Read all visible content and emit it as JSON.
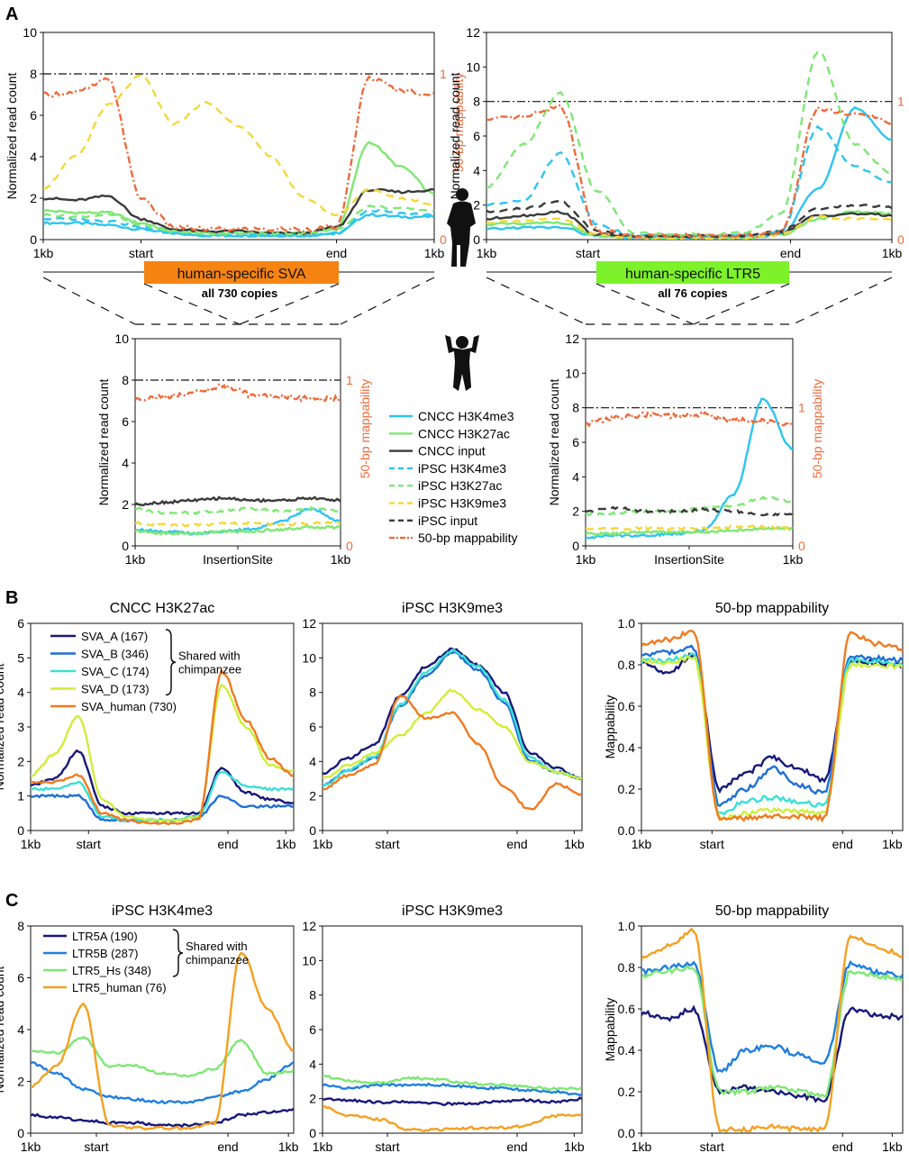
{
  "panel_labels": {
    "A": "A",
    "B": "B",
    "C": "C"
  },
  "colors": {
    "cncc_h3k4me3": "#2ec4f0",
    "cncc_h3k27ac": "#7ee873",
    "cncc_input": "#3a3a3a",
    "ipsc_h3k4me3": "#2ec4f0",
    "ipsc_h3k27ac": "#7ee873",
    "ipsc_h3k9me3": "#f4d83a",
    "ipsc_input": "#3a3a3a",
    "mappability": "#ee6a3b",
    "sva_a": "#17187a",
    "sva_b": "#1f6fd6",
    "sva_c": "#3be0d4",
    "sva_d": "#cfee3a",
    "sva_human": "#f07a1f",
    "ltr5a": "#17187a",
    "ltr5b": "#1f7fe0",
    "ltr5_hs": "#7ee873",
    "ltr5_human": "#f5a020",
    "sva_box": "#f58412",
    "ltr_box": "#7df22a"
  },
  "labels": {
    "sva_box": "human-specific SVA",
    "sva_copies": "all 730 copies",
    "ltr_box": "human-specific LTR5",
    "ltr_copies": "all 76 copies",
    "shared": "Shared with",
    "chimp": "chimpanzee",
    "legendA": [
      "CNCC H3K4me3",
      "CNCC H3K27ac",
      "CNCC input",
      "iPSC H3K4me3",
      "iPSC H3K27ac",
      "iPSC H3K9me3",
      "iPSC input",
      "50-bp mappability"
    ]
  },
  "chart_data": [
    {
      "id": "A-sva-human",
      "type": "line",
      "ylabel": "Normalized read count",
      "y2label": "50-bp mappability",
      "ylim": [
        0,
        10
      ],
      "yticks": [
        0,
        2,
        4,
        6,
        8,
        10
      ],
      "y2ticks": [
        "0",
        "1"
      ],
      "xticks": [
        "1kb",
        "start",
        "end",
        "1kb"
      ],
      "series": [
        {
          "name": "CNCC H3K4me3",
          "values": [
            0.8,
            0.8,
            0.7,
            0.5,
            0.3,
            0.2,
            0.2,
            0.2,
            0.2,
            0.3,
            1.2,
            1.1,
            1.1
          ]
        },
        {
          "name": "CNCC H3K27ac",
          "values": [
            1.4,
            1.3,
            1.3,
            0.8,
            0.4,
            0.3,
            0.3,
            0.3,
            0.3,
            0.5,
            4.7,
            3.5,
            2.2
          ]
        },
        {
          "name": "CNCC input",
          "values": [
            2.0,
            1.9,
            2.1,
            1.0,
            0.5,
            0.4,
            0.4,
            0.3,
            0.3,
            0.6,
            2.4,
            2.3,
            2.4
          ]
        },
        {
          "name": "iPSC H3K4me3",
          "values": [
            1.0,
            1.0,
            0.9,
            0.6,
            0.3,
            0.2,
            0.2,
            0.2,
            0.2,
            0.3,
            1.4,
            1.3,
            1.2
          ]
        },
        {
          "name": "iPSC H3K27ac",
          "values": [
            1.2,
            1.1,
            1.2,
            0.7,
            0.4,
            0.3,
            0.3,
            0.3,
            0.3,
            0.5,
            1.6,
            1.5,
            1.4
          ]
        },
        {
          "name": "iPSC H3K9me3",
          "values": [
            2.5,
            4.0,
            6.5,
            7.9,
            5.6,
            6.6,
            5.5,
            4.0,
            2.0,
            1.2,
            2.4,
            2.0,
            1.7
          ]
        },
        {
          "name": "50-bp mappability",
          "values": [
            7.0,
            7.1,
            7.7,
            2.0,
            0.6,
            0.5,
            0.5,
            0.5,
            0.5,
            0.6,
            7.8,
            7.2,
            7.0
          ]
        }
      ]
    },
    {
      "id": "A-ltr5-human",
      "type": "line",
      "ylabel": "Normalized read count",
      "y2label": "50-bp mappability",
      "ylim": [
        0,
        12
      ],
      "yticks": [
        0,
        2,
        4,
        6,
        8,
        10,
        12
      ],
      "y2ticks": [
        "0",
        "1"
      ],
      "xticks": [
        "1kb",
        "start",
        "end",
        "1kb"
      ],
      "series": [
        {
          "name": "CNCC H3K4me3",
          "values": [
            0.6,
            0.7,
            0.7,
            0.2,
            0.1,
            0.1,
            0.1,
            0.1,
            0.3,
            3.0,
            7.6,
            5.8
          ]
        },
        {
          "name": "CNCC H3K27ac",
          "values": [
            0.9,
            0.9,
            1.0,
            0.2,
            0.1,
            0.1,
            0.1,
            0.1,
            0.3,
            1.2,
            1.6,
            1.5
          ]
        },
        {
          "name": "CNCC input",
          "values": [
            1.2,
            1.4,
            1.6,
            0.3,
            0.2,
            0.2,
            0.2,
            0.2,
            0.4,
            1.4,
            1.5,
            1.4
          ]
        },
        {
          "name": "iPSC H3K4me3",
          "values": [
            2.0,
            2.3,
            5.0,
            0.9,
            0.2,
            0.2,
            0.2,
            0.2,
            0.5,
            6.5,
            4.2,
            3.3
          ]
        },
        {
          "name": "iPSC H3K27ac",
          "values": [
            3.0,
            5.5,
            8.5,
            2.8,
            0.4,
            0.3,
            0.3,
            0.4,
            1.5,
            10.9,
            5.5,
            3.8
          ]
        },
        {
          "name": "iPSC H3K9me3",
          "values": [
            1.0,
            1.1,
            1.2,
            0.3,
            0.1,
            0.1,
            0.1,
            0.1,
            0.3,
            1.3,
            1.2,
            1.2
          ]
        },
        {
          "name": "iPSC input",
          "values": [
            1.6,
            1.8,
            2.2,
            0.5,
            0.2,
            0.2,
            0.2,
            0.2,
            0.5,
            1.8,
            2.0,
            1.9
          ]
        },
        {
          "name": "50-bp mappability",
          "values": [
            6.9,
            7.1,
            7.7,
            0.5,
            0.2,
            0.2,
            0.2,
            0.2,
            0.5,
            7.6,
            7.3,
            6.8
          ]
        }
      ]
    },
    {
      "id": "A-sva-chimp",
      "type": "line",
      "ylabel": "Normalized read count",
      "y2label": "50-bp mappability",
      "ylim": [
        0,
        10
      ],
      "yticks": [
        0,
        2,
        4,
        6,
        8,
        10
      ],
      "y2ticks": [
        "0",
        "1"
      ],
      "xticks": [
        "1kb",
        "InsertionSite",
        "1kb"
      ],
      "series": [
        {
          "name": "CNCC H3K4me3",
          "values": [
            0.8,
            0.7,
            0.6,
            0.7,
            0.8,
            1.2,
            1.8,
            1.2
          ]
        },
        {
          "name": "CNCC H3K27ac",
          "values": [
            0.7,
            0.6,
            0.6,
            0.7,
            0.7,
            0.8,
            0.9,
            0.9
          ]
        },
        {
          "name": "CNCC input",
          "values": [
            2.0,
            2.1,
            2.2,
            2.3,
            2.2,
            2.2,
            2.3,
            2.2
          ]
        },
        {
          "name": "iPSC H3K27ac",
          "values": [
            1.8,
            1.6,
            1.6,
            1.7,
            1.8,
            1.7,
            1.8,
            1.7
          ]
        },
        {
          "name": "iPSC H3K9me3",
          "values": [
            1.1,
            1.0,
            1.0,
            1.1,
            1.1,
            1.0,
            1.1,
            1.1
          ]
        },
        {
          "name": "50-bp mappability",
          "values": [
            7.1,
            7.2,
            7.4,
            7.7,
            7.3,
            7.2,
            7.1,
            7.1
          ]
        }
      ]
    },
    {
      "id": "A-ltr5-chimp",
      "type": "line",
      "ylabel": "Normalized read count",
      "y2label": "50-bp mappability",
      "ylim": [
        0,
        12
      ],
      "yticks": [
        0,
        2,
        4,
        6,
        8,
        10,
        12
      ],
      "y2ticks": [
        "0",
        "1"
      ],
      "xticks": [
        "1kb",
        "InsertionSite",
        "1kb"
      ],
      "series": [
        {
          "name": "CNCC H3K4me3",
          "values": [
            0.5,
            0.6,
            0.6,
            0.7,
            0.9,
            3.0,
            8.5,
            5.6
          ]
        },
        {
          "name": "CNCC H3K27ac",
          "values": [
            0.7,
            0.7,
            0.8,
            0.8,
            0.8,
            0.9,
            1.0,
            1.0
          ]
        },
        {
          "name": "iPSC H3K27ac",
          "values": [
            1.8,
            1.9,
            2.0,
            2.0,
            2.2,
            2.3,
            2.8,
            2.6
          ]
        },
        {
          "name": "iPSC H3K9me3",
          "values": [
            1.0,
            1.0,
            1.0,
            1.0,
            1.0,
            1.1,
            1.1,
            1.0
          ]
        },
        {
          "name": "iPSC input",
          "values": [
            2.0,
            2.2,
            2.0,
            2.0,
            2.1,
            2.0,
            1.8,
            1.8
          ]
        },
        {
          "name": "50-bp mappability",
          "values": [
            7.1,
            7.4,
            7.6,
            7.5,
            7.6,
            7.3,
            7.2,
            7.0
          ]
        }
      ]
    },
    {
      "id": "B-cncc-h3k27ac",
      "type": "line",
      "title": "CNCC H3K27ac",
      "ylabel": "Normalized read count",
      "ylim": [
        0,
        6
      ],
      "yticks": [
        0,
        1,
        2,
        3,
        4,
        5,
        6
      ],
      "xticks": [
        "1kb",
        "start",
        "end",
        "1kb"
      ],
      "series": [
        {
          "name": "SVA_A (167)",
          "values": [
            1.3,
            1.5,
            2.3,
            0.7,
            0.5,
            0.5,
            0.5,
            0.5,
            1.8,
            1.1,
            0.9,
            0.8
          ]
        },
        {
          "name": "SVA_B (346)",
          "values": [
            1.0,
            1.0,
            1.0,
            0.3,
            0.3,
            0.3,
            0.3,
            0.4,
            1.0,
            0.7,
            0.7,
            0.7
          ]
        },
        {
          "name": "SVA_C (174)",
          "values": [
            1.2,
            1.2,
            1.4,
            0.4,
            0.3,
            0.3,
            0.3,
            0.4,
            1.7,
            1.3,
            1.2,
            1.2
          ]
        },
        {
          "name": "SVA_D (173)",
          "values": [
            1.6,
            2.2,
            3.3,
            0.9,
            0.4,
            0.3,
            0.3,
            0.4,
            4.2,
            3.0,
            1.9,
            1.7
          ]
        },
        {
          "name": "SVA_human (730)",
          "values": [
            1.4,
            1.4,
            1.6,
            0.5,
            0.3,
            0.2,
            0.2,
            0.3,
            4.6,
            3.2,
            2.1,
            1.6
          ]
        }
      ]
    },
    {
      "id": "B-ipsc-h3k9me3",
      "type": "line",
      "title": "iPSC H3K9me3",
      "ylim": [
        0,
        12
      ],
      "yticks": [
        0,
        2,
        4,
        6,
        8,
        10,
        12
      ],
      "xticks": [
        "1kb",
        "start",
        "end",
        "1kb"
      ],
      "series": [
        {
          "name": "SVA_A (167)",
          "values": [
            3.3,
            4.2,
            5.0,
            7.8,
            9.5,
            10.5,
            9.6,
            8.0,
            4.5,
            3.6,
            3.0
          ]
        },
        {
          "name": "SVA_B (346)",
          "values": [
            2.6,
            3.5,
            4.2,
            7.2,
            9.0,
            10.3,
            9.3,
            7.4,
            4.0,
            3.4,
            3.0
          ]
        },
        {
          "name": "SVA_C (174)",
          "values": [
            2.6,
            3.5,
            4.3,
            7.3,
            9.2,
            10.4,
            9.5,
            7.6,
            4.2,
            3.4,
            3.0
          ]
        },
        {
          "name": "SVA_D (173)",
          "values": [
            3.0,
            3.8,
            4.5,
            5.5,
            6.8,
            8.1,
            7.0,
            6.0,
            4.0,
            3.4,
            3.0
          ]
        },
        {
          "name": "SVA_human (730)",
          "values": [
            2.4,
            3.2,
            3.8,
            7.8,
            6.5,
            6.8,
            5.0,
            2.5,
            1.2,
            2.7,
            2.1
          ]
        }
      ]
    },
    {
      "id": "B-mappability",
      "type": "line",
      "title": "50-bp mappability",
      "ylabel": "Mappability",
      "ylim": [
        0,
        1
      ],
      "yticks": [
        "0.0",
        "0.2",
        "0.4",
        "0.6",
        "0.8",
        "1.0"
      ],
      "xticks": [
        "1kb",
        "start",
        "end",
        "1kb"
      ],
      "series": [
        {
          "name": "SVA_A (167)",
          "values": [
            0.82,
            0.76,
            0.85,
            0.2,
            0.28,
            0.35,
            0.3,
            0.24,
            0.82,
            0.81,
            0.8
          ]
        },
        {
          "name": "SVA_B (346)",
          "values": [
            0.85,
            0.86,
            0.88,
            0.12,
            0.2,
            0.3,
            0.22,
            0.18,
            0.84,
            0.83,
            0.82
          ]
        },
        {
          "name": "SVA_C (174)",
          "values": [
            0.82,
            0.82,
            0.85,
            0.08,
            0.14,
            0.16,
            0.14,
            0.12,
            0.82,
            0.82,
            0.8
          ]
        },
        {
          "name": "SVA_D (173)",
          "values": [
            0.82,
            0.81,
            0.84,
            0.06,
            0.08,
            0.1,
            0.09,
            0.08,
            0.8,
            0.8,
            0.79
          ]
        },
        {
          "name": "SVA_human (730)",
          "values": [
            0.9,
            0.92,
            0.96,
            0.05,
            0.06,
            0.07,
            0.07,
            0.06,
            0.95,
            0.9,
            0.88
          ]
        }
      ]
    },
    {
      "id": "C-ipsc-h3k4me3",
      "type": "line",
      "title": "iPSC H3K4me3",
      "ylabel": "Normalized read count",
      "ylim": [
        0,
        8
      ],
      "yticks": [
        0,
        2,
        4,
        6,
        8
      ],
      "xticks": [
        "1kb",
        "start",
        "end",
        "1kb"
      ],
      "series": [
        {
          "name": "LTR5A (190)",
          "values": [
            0.7,
            0.6,
            0.5,
            0.4,
            0.4,
            0.3,
            0.3,
            0.4,
            0.7,
            0.8,
            0.9
          ]
        },
        {
          "name": "LTR5B (287)",
          "values": [
            2.7,
            2.3,
            1.7,
            1.4,
            1.3,
            1.2,
            1.2,
            1.4,
            1.6,
            2.1,
            2.7
          ]
        },
        {
          "name": "LTR5_Hs (348)",
          "values": [
            3.2,
            3.1,
            3.7,
            2.6,
            2.6,
            2.3,
            2.2,
            2.5,
            3.6,
            2.3,
            2.4
          ]
        },
        {
          "name": "LTR5_human (76)",
          "values": [
            1.8,
            2.6,
            5.0,
            0.3,
            0.2,
            0.2,
            0.2,
            0.4,
            7.0,
            4.8,
            3.2
          ]
        }
      ]
    },
    {
      "id": "C-ipsc-h3k9me3",
      "type": "line",
      "title": "iPSC H3K9me3",
      "ylim": [
        0,
        12
      ],
      "yticks": [
        0,
        2,
        4,
        6,
        8,
        10,
        12
      ],
      "xticks": [
        "1kb",
        "start",
        "end",
        "1kb"
      ],
      "series": [
        {
          "name": "LTR5A (190)",
          "values": [
            2.0,
            1.9,
            1.8,
            1.8,
            1.7,
            1.7,
            1.8,
            1.9,
            1.8,
            2.0
          ]
        },
        {
          "name": "LTR5B (287)",
          "values": [
            2.8,
            2.6,
            2.8,
            2.8,
            2.8,
            2.7,
            2.6,
            2.5,
            2.4,
            2.2
          ]
        },
        {
          "name": "LTR5_Hs (348)",
          "values": [
            3.3,
            3.0,
            2.9,
            3.2,
            3.1,
            2.9,
            2.8,
            2.7,
            2.6,
            2.6
          ]
        },
        {
          "name": "LTR5_human (76)",
          "values": [
            1.5,
            1.0,
            0.8,
            0.2,
            0.2,
            0.3,
            0.3,
            0.4,
            1.0,
            1.1
          ]
        }
      ]
    },
    {
      "id": "C-mappability",
      "type": "line",
      "title": "50-bp mappability",
      "ylabel": "Mappability",
      "ylim": [
        0,
        1
      ],
      "yticks": [
        "0.0",
        "0.2",
        "0.4",
        "0.6",
        "0.8",
        "1.0"
      ],
      "xticks": [
        "1kb",
        "start",
        "end",
        "1kb"
      ],
      "series": [
        {
          "name": "LTR5A (190)",
          "values": [
            0.58,
            0.55,
            0.6,
            0.2,
            0.22,
            0.2,
            0.18,
            0.16,
            0.6,
            0.57,
            0.56
          ]
        },
        {
          "name": "LTR5B (287)",
          "values": [
            0.78,
            0.8,
            0.82,
            0.3,
            0.4,
            0.42,
            0.38,
            0.34,
            0.82,
            0.78,
            0.76
          ]
        },
        {
          "name": "LTR5_Hs (348)",
          "values": [
            0.76,
            0.78,
            0.8,
            0.2,
            0.2,
            0.22,
            0.2,
            0.18,
            0.78,
            0.76,
            0.74
          ]
        },
        {
          "name": "LTR5_human (76)",
          "values": [
            0.85,
            0.9,
            0.98,
            0.02,
            0.02,
            0.03,
            0.02,
            0.02,
            0.95,
            0.9,
            0.86
          ]
        }
      ]
    }
  ]
}
